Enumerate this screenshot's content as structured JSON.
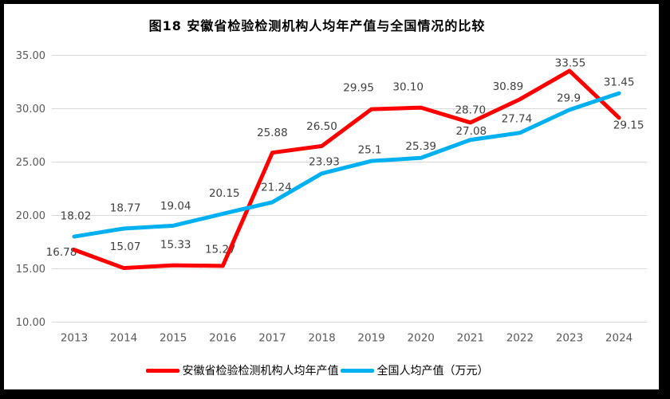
{
  "title": "图18 安徽省检验检测机构人均年产值与全国情况的比较",
  "colors": {
    "anhui_series": "#FF0000",
    "national_series": "#00B0F0",
    "gridline": "#D9D9D9",
    "axis_text": "#595959",
    "data_label_text": "#404040",
    "frame_border": "#000000"
  },
  "chart_data": {
    "type": "line",
    "title": "图18 安徽省检验检测机构人均年产值与全国情况的比较",
    "categories": [
      "2013",
      "2014",
      "2015",
      "2016",
      "2017",
      "2018",
      "2019",
      "2020",
      "2021",
      "2022",
      "2023",
      "2024"
    ],
    "series": [
      {
        "name": "安徽省检验检测机构人均年产值",
        "color": "#FF0000",
        "values": [
          16.78,
          15.07,
          15.33,
          15.27,
          25.88,
          26.5,
          29.95,
          30.1,
          28.7,
          30.89,
          33.55,
          29.15
        ],
        "labels": [
          "16.78",
          "15.07",
          "15.33",
          "15.27",
          "25.88",
          "26.50",
          "29.95",
          "30.10",
          "28.70",
          "30.89",
          "33.55",
          "29.15"
        ],
        "label_offsets": [
          [
            -16,
            3
          ],
          [
            2,
            -27
          ],
          [
            3,
            -26
          ],
          [
            -3,
            -21
          ],
          [
            0,
            -25
          ],
          [
            0,
            -25
          ],
          [
            -16,
            -27
          ],
          [
            -16,
            -26
          ],
          [
            0,
            -16
          ],
          [
            -15,
            -16
          ],
          [
            1,
            -10
          ],
          [
            12,
            9
          ]
        ]
      },
      {
        "name": "全国人均产值（万元）",
        "color": "#00B0F0",
        "values": [
          18.02,
          18.77,
          19.04,
          20.15,
          21.24,
          23.93,
          25.1,
          25.39,
          27.08,
          27.74,
          29.9,
          31.45
        ],
        "labels": [
          "18.02",
          "18.77",
          "19.04",
          "20.15",
          "21.24",
          "23.93",
          "25.1",
          "25.39",
          "27.08",
          "27.74",
          "29.9",
          "31.45"
        ],
        "label_offsets": [
          [
            2,
            -26
          ],
          [
            2,
            -26
          ],
          [
            3,
            -25
          ],
          [
            2,
            -26
          ],
          [
            5,
            -19
          ],
          [
            3,
            -15
          ],
          [
            -2,
            -14
          ],
          [
            0,
            -15
          ],
          [
            1,
            -11
          ],
          [
            -4,
            -18
          ],
          [
            -1,
            -15
          ],
          [
            0,
            -14
          ]
        ]
      }
    ],
    "ylim": [
      10,
      35
    ],
    "yticks": [
      {
        "value": 35,
        "label": "35.00"
      },
      {
        "value": 30,
        "label": "30.00"
      },
      {
        "value": 25,
        "label": "25.00"
      },
      {
        "value": 20,
        "label": "20.00"
      },
      {
        "value": 15,
        "label": "15.00"
      },
      {
        "value": 10,
        "label": "10.00"
      }
    ],
    "grid": true,
    "legend_position": "bottom"
  }
}
